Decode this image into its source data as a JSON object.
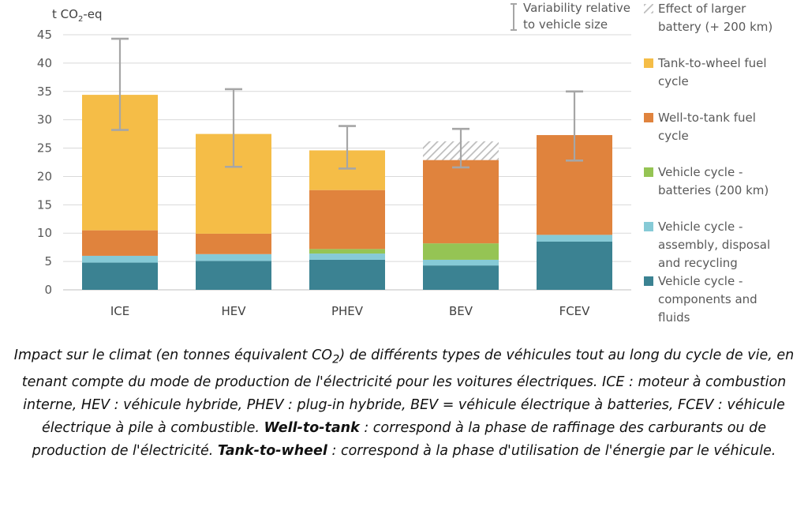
{
  "chart_data": {
    "type": "bar",
    "stacked": true,
    "ylabel_prefix": "t CO",
    "ylabel_sub": "2",
    "ylabel_suffix": "-eq",
    "ylim": [
      0,
      45
    ],
    "yticks": [
      0,
      5,
      10,
      15,
      20,
      25,
      30,
      35,
      40,
      45
    ],
    "categories": [
      "ICE",
      "HEV",
      "PHEV",
      "BEV",
      "FCEV"
    ],
    "series": [
      {
        "key": "components",
        "label": "Vehicle cycle - components and fluids",
        "color": "#3b8292",
        "values": [
          4.8,
          5.1,
          5.3,
          4.3,
          8.5
        ]
      },
      {
        "key": "assembly",
        "label": "Vehicle cycle - assembly, disposal and recycling",
        "color": "#86cad6",
        "values": [
          1.2,
          1.2,
          1.1,
          1.0,
          1.2
        ]
      },
      {
        "key": "batteries",
        "label": "Vehicle cycle - batteries (200 km)",
        "color": "#95c454",
        "values": [
          0,
          0,
          0.8,
          2.9,
          0
        ]
      },
      {
        "key": "wtt",
        "label": "Well-to-tank fuel cycle",
        "color": "#e0833d",
        "values": [
          4.5,
          3.6,
          10.4,
          14.7,
          17.6
        ]
      },
      {
        "key": "ttw",
        "label": "Tank-to-wheel fuel cycle",
        "color": "#f5bd47",
        "values": [
          23.9,
          17.6,
          7.0,
          0,
          0
        ]
      },
      {
        "key": "battery_extra",
        "label": "Effect of larger battery (+ 200 km)",
        "color": "hatch",
        "values": [
          0,
          0,
          0,
          3.3,
          0
        ]
      }
    ],
    "error_bars": [
      {
        "low": 28.2,
        "high": 44.3
      },
      {
        "low": 21.7,
        "high": 35.4
      },
      {
        "low": 21.4,
        "high": 28.9
      },
      {
        "low": 21.6,
        "high": 28.4
      },
      {
        "low": 22.8,
        "high": 35.0
      }
    ],
    "variability_label_1": "Variability relative",
    "variability_label_2": "to vehicle size",
    "legend": [
      {
        "lines": [
          "Effect of larger",
          "battery (+ 200 km)"
        ],
        "color": "hatch"
      },
      {
        "lines": [
          "Tank-to-wheel fuel",
          "cycle"
        ],
        "color": "#f5bd47"
      },
      {
        "lines": [
          "Well-to-tank fuel",
          "cycle"
        ],
        "color": "#e0833d"
      },
      {
        "lines": [
          "Vehicle cycle -",
          "batteries (200 km)"
        ],
        "color": "#95c454"
      },
      {
        "lines": [
          "Vehicle cycle -",
          "assembly, disposal",
          "and recycling"
        ],
        "color": "#86cad6"
      },
      {
        "lines": [
          "Vehicle cycle -",
          "components and",
          "fluids"
        ],
        "color": "#3b8292"
      }
    ],
    "grid": true,
    "legend_position": "right"
  },
  "caption": {
    "p1": "Impact sur le climat (en tonnes équivalent CO",
    "sub": "2",
    "p2": ") de différents types de véhicules tout au long du cycle de vie, en tenant compte du mode de production de l'électricité pour les voitures électriques. ICE : moteur à combustion interne, HEV : véhicule hybride, PHEV : plug-in hybride, BEV = véhicule électrique à batteries, FCEV : véhicule électrique à pile à combustible. ",
    "b1": "Well-to-tank",
    "p3": " : correspond à la phase de raffinage des carburants ou de production de l'électricité. ",
    "b2": "Tank-to-wheel",
    "p4": " : correspond à la phase d'utilisation de l'énergie par le véhicule."
  }
}
